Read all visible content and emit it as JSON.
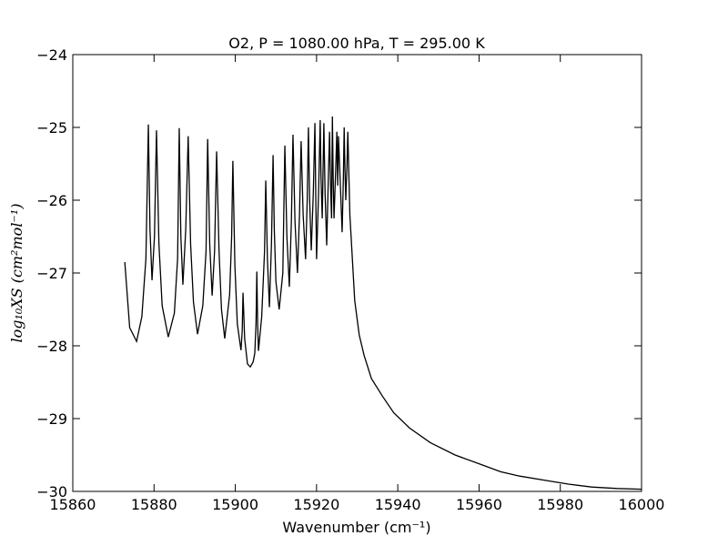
{
  "chart_data": {
    "type": "line",
    "title": "O2, P = 1080.00 hPa, T = 295.00 K",
    "x_label": "Wavenumber (cm⁻¹)",
    "y_label": "log₁₀XS (cm²mol⁻¹)",
    "xlim": [
      15860,
      16000
    ],
    "ylim": [
      -30,
      -24
    ],
    "xticks": [
      15860,
      15880,
      15900,
      15920,
      15940,
      15960,
      15980,
      16000
    ],
    "yticks": [
      {
        "value": -24,
        "label": "−24"
      },
      {
        "value": -25,
        "label": "−25"
      },
      {
        "value": -26,
        "label": "−26"
      },
      {
        "value": -27,
        "label": "−27"
      },
      {
        "value": -28,
        "label": "−28"
      },
      {
        "value": -29,
        "label": "−29"
      },
      {
        "value": -30,
        "label": "−30"
      }
    ],
    "series": [
      {
        "color": "#000000",
        "x": [
          15872.8,
          15874.0,
          15875.7,
          15877.0,
          15878.0,
          15878.6,
          15879.0,
          15879.5,
          15880.1,
          15880.6,
          15881.2,
          15882.0,
          15883.5,
          15885.0,
          15885.8,
          15886.2,
          15886.6,
          15887.1,
          15887.8,
          15888.4,
          15889.0,
          15889.7,
          15890.7,
          15892.0,
          15892.8,
          15893.2,
          15893.7,
          15894.3,
          15894.9,
          15895.4,
          15896.0,
          15896.6,
          15897.4,
          15898.6,
          15899.1,
          15899.4,
          15899.9,
          15900.5,
          15901.4,
          15901.7,
          15901.9,
          15902.3,
          15903.0,
          15903.7,
          15904.4,
          15904.8,
          15905.1,
          15905.3,
          15905.5,
          15905.7,
          15906.5,
          15907.2,
          15907.5,
          15907.9,
          15908.4,
          15908.9,
          15909.3,
          15909.6,
          15910.0,
          15910.8,
          15911.7,
          15912.2,
          15912.7,
          15913.3,
          15913.8,
          15914.2,
          15914.7,
          15915.3,
          15915.8,
          15916.2,
          15916.7,
          15917.3,
          15917.7,
          15918.0,
          15918.3,
          15918.7,
          15919.2,
          15919.6,
          15919.8,
          15920.0,
          15920.5,
          15920.9,
          15921.1,
          15921.4,
          15921.8,
          15922.1,
          15922.5,
          15922.9,
          15923.2,
          15923.5,
          15923.7,
          15923.9,
          15924.1,
          15924.3,
          15924.7,
          15925.0,
          15925.2,
          15925.4,
          15925.8,
          15926.3,
          15926.6,
          15926.8,
          15927.0,
          15927.2,
          15927.5,
          15927.7,
          15928.2,
          15929.4,
          15930.5,
          15931.7,
          15933.5,
          15936.2,
          15939.0,
          15942.9,
          15948.0,
          15954.1,
          15960.0,
          15965.3,
          15970.0,
          15976.5,
          15982.0,
          15987.7,
          15994.0,
          16000.0
        ],
        "values": [
          -26.85,
          -27.75,
          -27.94,
          -27.6,
          -26.8,
          -24.96,
          -26.4,
          -27.1,
          -26.5,
          -25.04,
          -26.6,
          -27.45,
          -27.88,
          -27.55,
          -26.8,
          -25.01,
          -26.5,
          -27.16,
          -26.4,
          -25.12,
          -26.6,
          -27.4,
          -27.84,
          -27.45,
          -26.7,
          -25.16,
          -26.6,
          -27.31,
          -26.7,
          -25.33,
          -26.7,
          -27.5,
          -27.9,
          -27.3,
          -26.5,
          -25.46,
          -26.9,
          -27.7,
          -28.06,
          -27.8,
          -27.27,
          -27.9,
          -28.25,
          -28.29,
          -28.22,
          -28.1,
          -27.7,
          -26.98,
          -27.7,
          -28.07,
          -27.6,
          -26.7,
          -25.73,
          -26.8,
          -27.47,
          -26.6,
          -25.38,
          -26.4,
          -27.12,
          -27.5,
          -27.0,
          -25.25,
          -26.5,
          -27.19,
          -26.3,
          -25.1,
          -26.3,
          -27.0,
          -26.2,
          -25.19,
          -26.2,
          -26.81,
          -26.0,
          -25.0,
          -26.0,
          -26.69,
          -25.9,
          -24.94,
          -25.9,
          -26.81,
          -25.9,
          -24.9,
          -25.7,
          -26.25,
          -24.94,
          -25.9,
          -26.62,
          -25.7,
          -25.06,
          -25.9,
          -26.25,
          -24.85,
          -25.7,
          -26.25,
          -25.6,
          -25.06,
          -25.8,
          -25.12,
          -25.7,
          -26.44,
          -25.7,
          -25.0,
          -25.6,
          -26.0,
          -25.5,
          -25.06,
          -26.2,
          -27.38,
          -27.85,
          -28.13,
          -28.45,
          -28.69,
          -28.92,
          -29.13,
          -29.33,
          -29.5,
          -29.62,
          -29.73,
          -29.79,
          -29.85,
          -29.9,
          -29.94,
          -29.96,
          -29.97
        ]
      }
    ]
  }
}
